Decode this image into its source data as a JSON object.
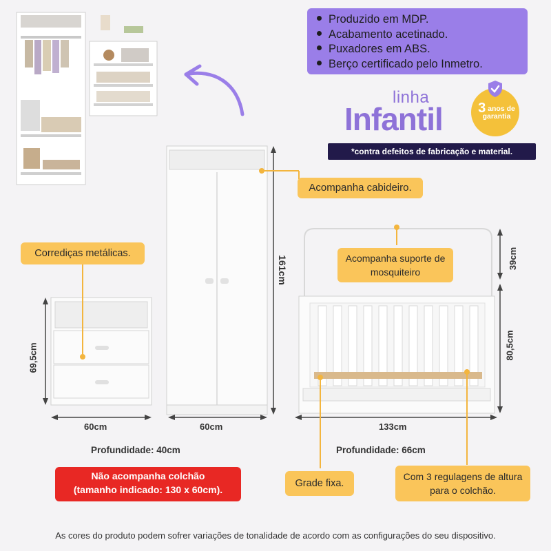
{
  "features": [
    "Produzido em MDP.",
    "Acabamento acetinado.",
    "Puxadores em ABS.",
    "Berço certificado pelo Inmetro."
  ],
  "brand": {
    "linha": "linha",
    "infantil": "Infantil",
    "seal_number": "3",
    "seal_line1": "anos de",
    "seal_line2": "garantia",
    "warranty_note": "*contra defeitos de fabricação e material."
  },
  "callouts": {
    "cabideiro": "Acompanha cabideiro.",
    "corredicas": "Corrediças metálicas.",
    "mosquiteiro": "Acompanha suporte de mosquiteiro",
    "grade": "Grade fixa.",
    "regulagens": "Com 3 regulagens de altura para o colchão."
  },
  "dimensions": {
    "wardrobe_height": "161cm",
    "wardrobe_width": "60cm",
    "dresser_height": "69,5cm",
    "dresser_width": "60cm",
    "dresser_depth": "Profundidade: 40cm",
    "crib_support_height": "39cm",
    "crib_height": "80,5cm",
    "crib_width": "133cm",
    "crib_depth": "Profundidade: 66cm"
  },
  "mattress_notice_line1": "Não acompanha colchão",
  "mattress_notice_line2": "(tamanho indicado: 130 x 60cm).",
  "footer": "As cores do produto podem sofrer variações de tonalidade de acordo com as configurações do seu dispositivo.",
  "colors": {
    "purple": "#9a7ee8",
    "yellow": "#fac55a",
    "red": "#e82824",
    "navy": "#221a4a"
  }
}
